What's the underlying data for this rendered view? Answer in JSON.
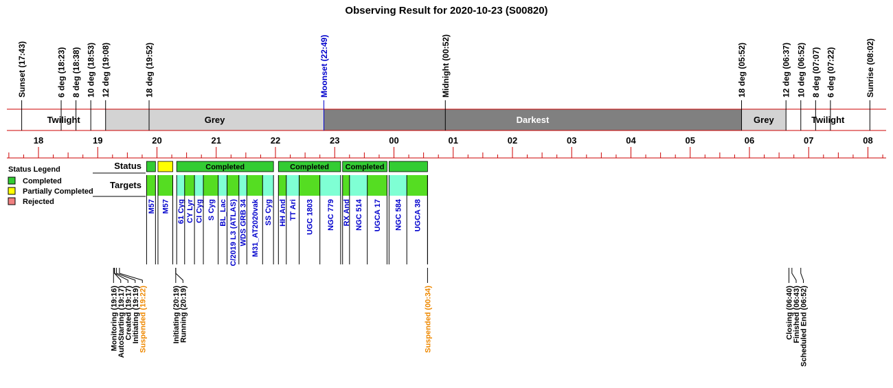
{
  "chart_data": {
    "type": "timeline",
    "title": "Observing Result for 2020-10-23 (S00820)",
    "time_unit": "decimal hours after 18:00 local (0 = 18:00)",
    "axis_range": [
      -0.4,
      14.15
    ],
    "hour_ticks": [
      {
        "label": "18",
        "t": 0
      },
      {
        "label": "19",
        "t": 1
      },
      {
        "label": "20",
        "t": 2
      },
      {
        "label": "21",
        "t": 3
      },
      {
        "label": "22",
        "t": 4
      },
      {
        "label": "23",
        "t": 5
      },
      {
        "label": "00",
        "t": 6
      },
      {
        "label": "01",
        "t": 7
      },
      {
        "label": "02",
        "t": 8
      },
      {
        "label": "03",
        "t": 9
      },
      {
        "label": "04",
        "t": 10
      },
      {
        "label": "05",
        "t": 11
      },
      {
        "label": "06",
        "t": 12
      },
      {
        "label": "07",
        "t": 13
      },
      {
        "label": "08",
        "t": 14
      }
    ],
    "events": [
      {
        "label": "Sunset (17:43)",
        "t": -0.283,
        "color": "#000000"
      },
      {
        "label": "6 deg (18:23)",
        "t": 0.383,
        "color": "#000000"
      },
      {
        "label": "8 deg (18:38)",
        "t": 0.633,
        "color": "#000000"
      },
      {
        "label": "10 deg (18:53)",
        "t": 0.883,
        "color": "#000000"
      },
      {
        "label": "12 deg (19:08)",
        "t": 1.133,
        "color": "#000000"
      },
      {
        "label": "18 deg (19:52)",
        "t": 1.867,
        "color": "#000000"
      },
      {
        "label": "Moonset (22:49)",
        "t": 4.817,
        "color": "#0000cc"
      },
      {
        "label": "Midnight (00:52)",
        "t": 6.867,
        "color": "#000000"
      },
      {
        "label": "18 deg (05:52)",
        "t": 11.867,
        "color": "#000000"
      },
      {
        "label": "12 deg (06:37)",
        "t": 12.617,
        "color": "#000000"
      },
      {
        "label": "10 deg (06:52)",
        "t": 12.867,
        "color": "#000000"
      },
      {
        "label": "8 deg (07:07)",
        "t": 13.117,
        "color": "#000000"
      },
      {
        "label": "6 deg (07:22)",
        "t": 13.367,
        "color": "#000000"
      },
      {
        "label": "Sunrise (08:02)",
        "t": 14.033,
        "color": "#000000"
      }
    ],
    "sky_bands": [
      {
        "label": "Twilight",
        "start": -0.283,
        "end": 1.133,
        "color": "#ffffff",
        "text_color": "#000000"
      },
      {
        "label": "Grey",
        "start": 1.133,
        "end": 4.817,
        "color": "#d3d3d3",
        "text_color": "#000000"
      },
      {
        "label": "Darkest",
        "start": 4.817,
        "end": 11.867,
        "color": "#808080",
        "text_color": "#ffffff"
      },
      {
        "label": "Grey",
        "start": 11.867,
        "end": 12.617,
        "color": "#d3d3d3",
        "text_color": "#000000"
      },
      {
        "label": "Twilight",
        "start": 12.617,
        "end": 14.033,
        "color": "#ffffff",
        "text_color": "#000000"
      }
    ],
    "rows": {
      "status_label": "Status",
      "targets_label": "Targets"
    },
    "status_blocks": [
      {
        "start": 1.825,
        "end": 1.975,
        "status": "completed",
        "label": ""
      },
      {
        "start": 2.017,
        "end": 2.267,
        "status": "partial",
        "label": ""
      },
      {
        "start": 2.333,
        "end": 3.967,
        "status": "completed",
        "label": "Completed"
      },
      {
        "start": 4.05,
        "end": 5.1,
        "status": "completed",
        "label": "Completed"
      },
      {
        "start": 5.133,
        "end": 5.883,
        "status": "completed",
        "label": "Completed"
      },
      {
        "start": 5.917,
        "end": 6.567,
        "status": "completed",
        "label": ""
      }
    ],
    "targets": [
      {
        "name": "M57",
        "start": 1.825,
        "end": 1.975,
        "color": "#55dd22"
      },
      {
        "name": "M57",
        "start": 2.017,
        "end": 2.267,
        "color": "#55dd22"
      },
      {
        "name": "61 Cyg",
        "start": 2.333,
        "end": 2.467,
        "color": "#7fffd4"
      },
      {
        "name": "CY Lyr",
        "start": 2.467,
        "end": 2.633,
        "color": "#55dd22"
      },
      {
        "name": "CI Cyg",
        "start": 2.633,
        "end": 2.783,
        "color": "#7fffd4"
      },
      {
        "name": "S Cyg",
        "start": 2.783,
        "end": 3.033,
        "color": "#55dd22"
      },
      {
        "name": "BL_Lac",
        "start": 3.033,
        "end": 3.183,
        "color": "#7fffd4"
      },
      {
        "name": "C/2019 L3 (ATLAS)",
        "start": 3.183,
        "end": 3.383,
        "color": "#55dd22"
      },
      {
        "name": "WDS GRB 34",
        "start": 3.383,
        "end": 3.517,
        "color": "#7fffd4"
      },
      {
        "name": "M31_AT2020vak",
        "start": 3.517,
        "end": 3.783,
        "color": "#55dd22"
      },
      {
        "name": "SS Cyg",
        "start": 3.783,
        "end": 3.967,
        "color": "#7fffd4"
      },
      {
        "name": "HH And",
        "start": 4.05,
        "end": 4.183,
        "color": "#55dd22"
      },
      {
        "name": "TT Ari",
        "start": 4.183,
        "end": 4.4,
        "color": "#7fffd4"
      },
      {
        "name": "UGC 1803",
        "start": 4.4,
        "end": 4.75,
        "color": "#55dd22"
      },
      {
        "name": "NGC 779",
        "start": 4.75,
        "end": 5.1,
        "color": "#7fffd4"
      },
      {
        "name": "RX And",
        "start": 5.133,
        "end": 5.25,
        "color": "#55dd22"
      },
      {
        "name": "NGC 514",
        "start": 5.25,
        "end": 5.55,
        "color": "#7fffd4"
      },
      {
        "name": "UGCA 17",
        "start": 5.55,
        "end": 5.883,
        "color": "#55dd22"
      },
      {
        "name": "NGC 584",
        "start": 5.917,
        "end": 6.217,
        "color": "#7fffd4"
      },
      {
        "name": "UGCA 38",
        "start": 6.217,
        "end": 6.567,
        "color": "#55dd22"
      }
    ],
    "state_events": [
      {
        "label": "Monitoring (19:16)",
        "t": 1.267,
        "color": "#000000"
      },
      {
        "label": "AutoStarting (19:17)",
        "t": 1.283,
        "color": "#000000"
      },
      {
        "label": "Created (19:17)",
        "t": 1.283,
        "color": "#000000"
      },
      {
        "label": "Initiating (19:19)",
        "t": 1.317,
        "color": "#000000"
      },
      {
        "label": "Suspended (19:22)",
        "t": 1.367,
        "color": "#ee8800"
      },
      {
        "label": "Initiating (20:19)",
        "t": 2.317,
        "color": "#000000"
      },
      {
        "label": "Running (20:19)",
        "t": 2.317,
        "color": "#000000"
      },
      {
        "label": "Suspended (00:34)",
        "t": 6.567,
        "color": "#ee8800"
      },
      {
        "label": "Closing (06:40)",
        "t": 12.667,
        "color": "#000000"
      },
      {
        "label": "Finished (06:43)",
        "t": 12.717,
        "color": "#000000"
      },
      {
        "label": "Scheduled End (06:52)",
        "t": 12.867,
        "color": "#000000"
      }
    ],
    "legend": {
      "title": "Status Legend",
      "placement": "left",
      "items": [
        {
          "label": "Completed",
          "color": "#33cc33"
        },
        {
          "label": "Partially Completed",
          "color": "#ffff00"
        },
        {
          "label": "Rejected",
          "color": "#f08080"
        }
      ]
    },
    "colors": {
      "axis_line": "#cc0000",
      "status_completed": "#33cc33",
      "status_partial": "#ffff00",
      "status_rejected": "#f08080",
      "target_text": "#0000cc"
    }
  }
}
